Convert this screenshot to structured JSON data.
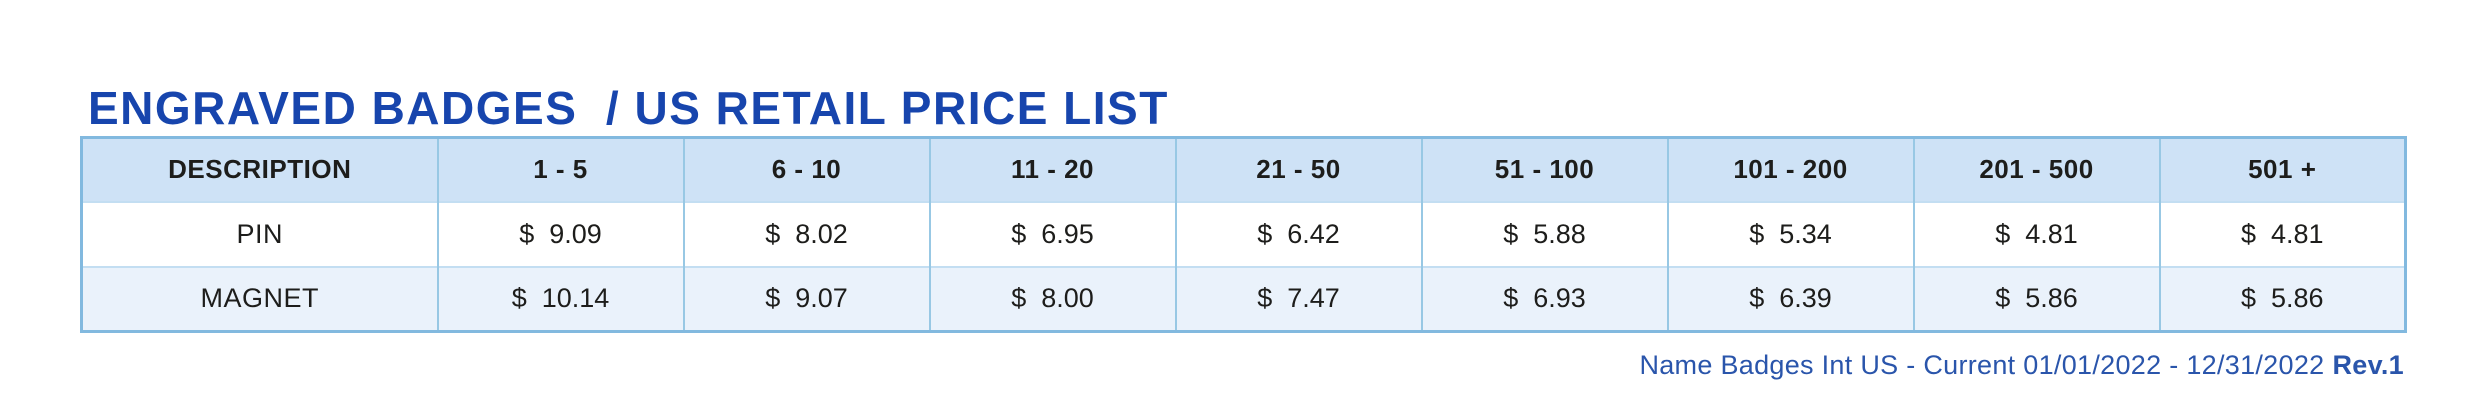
{
  "title": "ENGRAVED BADGES  / US RETAIL PRICE LIST",
  "table": {
    "currency_symbol": "$",
    "headers": [
      "DESCRIPTION",
      "1 - 5",
      "6 - 10",
      "11 - 20",
      "21 - 50",
      "51 - 100",
      "101 - 200",
      "201 - 500",
      "501 +"
    ],
    "rows": [
      {
        "description": "PIN",
        "prices": [
          "9.09",
          "8.02",
          "6.95",
          "6.42",
          "5.88",
          "5.34",
          "4.81",
          "4.81"
        ]
      },
      {
        "description": "MAGNET",
        "prices": [
          "10.14",
          "9.07",
          "8.00",
          "7.47",
          "6.93",
          "6.39",
          "5.86",
          "5.86"
        ]
      }
    ]
  },
  "footer": {
    "text": "Name Badges Int US - Current 01/01/2022 - 12/31/2022",
    "revision": "Rev.1"
  },
  "colors": {
    "title_blue": "#1745ad",
    "footer_blue": "#2a55ab",
    "header_row_bg": "#cee2f6",
    "alt_row_bg": "#eaf2fb",
    "outer_border": "#82b9df",
    "inner_border": "#98c8e4",
    "text_dark": "#1d1d1b"
  }
}
